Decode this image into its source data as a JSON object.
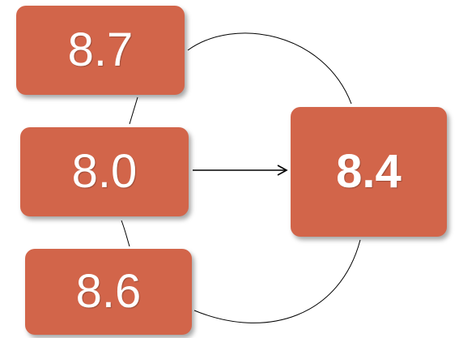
{
  "colors": {
    "box_fill": "#d2654a",
    "connector": "#000000",
    "text": "#ffffff"
  },
  "nodes": [
    {
      "id": "a",
      "label": "8.7"
    },
    {
      "id": "b",
      "label": "8.0"
    },
    {
      "id": "c",
      "label": "8.6"
    },
    {
      "id": "d",
      "label": "8.4"
    }
  ]
}
